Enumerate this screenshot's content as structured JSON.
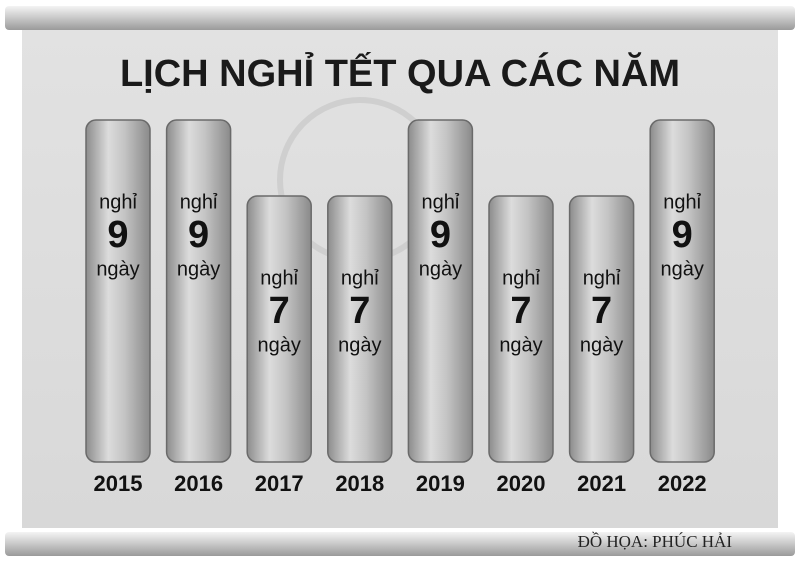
{
  "chart_data": {
    "type": "bar",
    "title": "LỊCH NGHỈ TẾT QUA CÁC NĂM",
    "categories": [
      "2015",
      "2016",
      "2017",
      "2018",
      "2019",
      "2020",
      "2021",
      "2022"
    ],
    "values": [
      9,
      9,
      7,
      7,
      9,
      7,
      7,
      9
    ],
    "value_prefix": "nghỉ",
    "value_suffix": "ngày",
    "color": "#6a6a6a",
    "credit": "ĐỒ HỌA: PHÚC HẢI"
  }
}
